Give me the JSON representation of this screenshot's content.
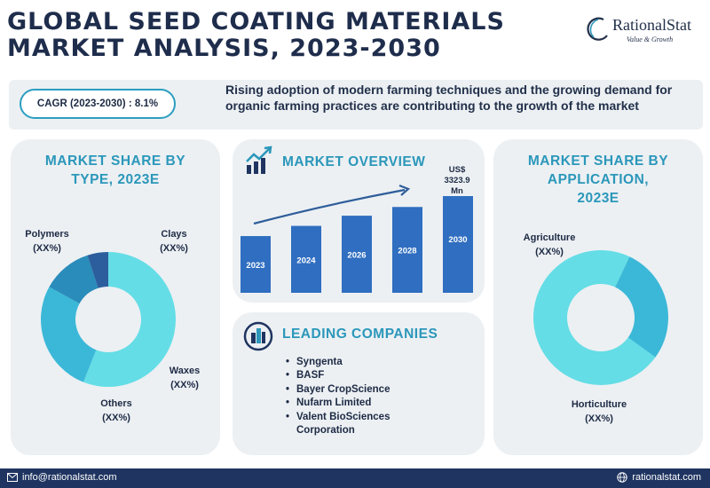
{
  "header": {
    "title_line1": "GLOBAL SEED COATING MATERIALS",
    "title_line2": "MARKET ANALYSIS, 2023-2030"
  },
  "logo": {
    "name": "RationalStat",
    "tagline": "Value & Growth",
    "icon": "rationalstat-logo-icon"
  },
  "banner": {
    "cagr": "CAGR (2023-2030) : 8.1%",
    "text": "Rising adoption of modern farming techniques and the growing demand for organic farming practices are contributing to the growth of the market"
  },
  "type_panel": {
    "title_line1": "MARKET SHARE BY",
    "title_line2": "TYPE, 2023E",
    "labels": [
      {
        "name": "Polymers",
        "value": "(XX%)"
      },
      {
        "name": "Clays",
        "value": "(XX%)"
      },
      {
        "name": "Waxes",
        "value": "(XX%)"
      },
      {
        "name": "Others",
        "value": "(XX%)"
      }
    ]
  },
  "overview_panel": {
    "title": "MARKET OVERVIEW",
    "icon": "growth-chart-icon",
    "value_label_line1": "US$",
    "value_label_line2": "3323.9",
    "value_label_line3": "Mn"
  },
  "application_panel": {
    "title_line1": "MARKET SHARE BY",
    "title_line2": "APPLICATION,",
    "title_line3": "2023E",
    "labels": [
      {
        "name": "Agriculture",
        "value": "(XX%)"
      },
      {
        "name": "Horticulture",
        "value": "(XX%)"
      }
    ]
  },
  "companies_panel": {
    "title": "LEADING COMPANIES",
    "icon": "buildings-icon",
    "items": [
      "Syngenta",
      "BASF",
      "Bayer CropScience",
      "Nufarm Limited",
      "Valent BioSciences Corporation"
    ]
  },
  "footer": {
    "email": "info@rationalstat.com",
    "website": "rationalstat.com",
    "email_icon": "mail-icon",
    "web_icon": "globe-icon"
  },
  "colors": {
    "navy": "#1f2d4c",
    "accent": "#2b97ba",
    "bar": "#2f6ec0",
    "panel": "#ecf0f3"
  },
  "chart_data": [
    {
      "type": "pie",
      "donut": true,
      "categories": [
        "Polymers",
        "Clays",
        "Waxes",
        "Others"
      ],
      "values": [
        56,
        27,
        12,
        5
      ],
      "colors": [
        "#64dde6",
        "#3bb8d8",
        "#2a8cba",
        "#2c5e9e"
      ],
      "data_labels": [
        "(XX%)",
        "(XX%)",
        "(XX%)",
        "(XX%)"
      ]
    },
    {
      "type": "bar",
      "categories": [
        "2023",
        "2024",
        "2026",
        "2028",
        "2030"
      ],
      "values": [
        1950,
        2300,
        2650,
        2950,
        3323.9
      ],
      "ylim": [
        0,
        3323.9
      ],
      "trend_arrow": true,
      "data_labels": [
        "",
        "",
        "",
        "",
        "US$ 3323.9 Mn"
      ]
    },
    {
      "type": "pie",
      "donut": true,
      "categories": [
        "Agriculture",
        "Horticulture"
      ],
      "values": [
        72,
        28
      ],
      "colors": [
        "#64dde6",
        "#3bb8d8"
      ],
      "data_labels": [
        "(XX%)",
        "(XX%)"
      ]
    }
  ]
}
